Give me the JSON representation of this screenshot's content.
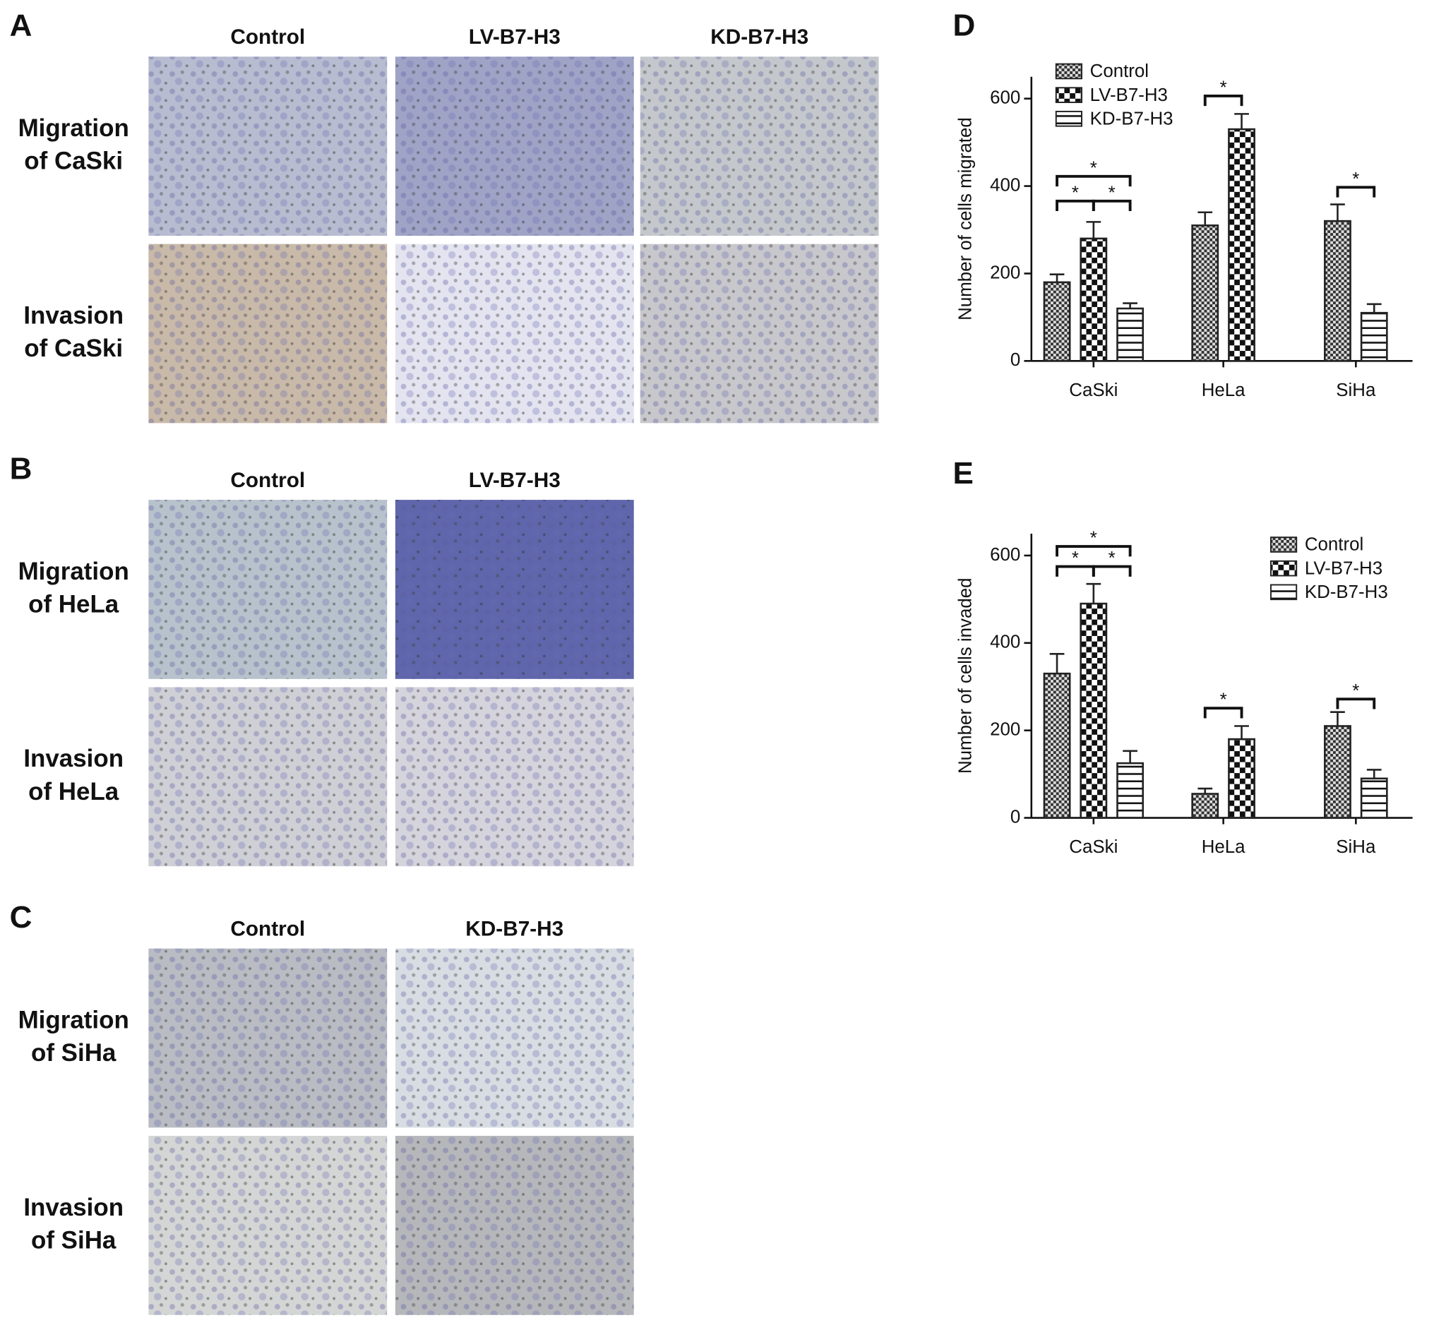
{
  "panels": [
    {
      "label": "A",
      "columns": [
        "Control",
        "LV-B7-H3",
        "KD-B7-H3"
      ],
      "rows": [
        [
          "Migration",
          "of CaSki"
        ],
        [
          "Invasion",
          "of CaSki"
        ]
      ]
    },
    {
      "label": "B",
      "columns": [
        "Control",
        "LV-B7-H3"
      ],
      "rows": [
        [
          "Migration",
          "of HeLa"
        ],
        [
          "Invasion",
          "of HeLa"
        ]
      ]
    },
    {
      "label": "C",
      "columns": [
        "Control",
        "KD-B7-H3"
      ],
      "rows": [
        [
          "Migration",
          "of SiHa"
        ],
        [
          "Invasion",
          "of SiHa"
        ]
      ]
    }
  ],
  "chart_data": [
    {
      "type": "bar",
      "panel_label": "D",
      "y_label": "Number of cells migrated",
      "categories": [
        "CaSki",
        "HeLa",
        "SiHa"
      ],
      "series": [
        {
          "name": "Control",
          "color": "#222222",
          "hatch": "checker-fine",
          "values": [
            180,
            310,
            320
          ],
          "errors": [
            18,
            30,
            38
          ]
        },
        {
          "name": "LV-B7-H3",
          "color": "#222222",
          "hatch": "checker-coarse",
          "values": [
            280,
            530,
            null
          ],
          "errors": [
            38,
            35,
            null
          ]
        },
        {
          "name": "KD-B7-H3",
          "color": "#222222",
          "hatch": "horizontal",
          "values": [
            120,
            null,
            110
          ],
          "errors": [
            12,
            null,
            20
          ]
        }
      ],
      "ylim": [
        0,
        650
      ],
      "yticks": [
        0,
        200,
        400,
        600
      ],
      "legend": "upper left",
      "annotations": [
        "*",
        "*",
        "*",
        "*",
        "*"
      ]
    },
    {
      "type": "bar",
      "panel_label": "E",
      "y_label": "Number of cells invaded",
      "categories": [
        "CaSki",
        "HeLa",
        "SiHa"
      ],
      "series": [
        {
          "name": "Control",
          "color": "#222222",
          "hatch": "checker-fine",
          "values": [
            330,
            55,
            210
          ],
          "errors": [
            45,
            12,
            32
          ]
        },
        {
          "name": "LV-B7-H3",
          "color": "#222222",
          "hatch": "checker-coarse",
          "values": [
            490,
            180,
            null
          ],
          "errors": [
            45,
            30,
            null
          ]
        },
        {
          "name": "KD-B7-H3",
          "color": "#222222",
          "hatch": "horizontal",
          "values": [
            125,
            null,
            90
          ],
          "errors": [
            28,
            null,
            20
          ]
        }
      ],
      "ylim": [
        0,
        650
      ],
      "yticks": [
        0,
        200,
        400,
        600
      ],
      "legend": "upper right",
      "annotations": [
        "*",
        "*",
        "*",
        "*",
        "*"
      ]
    }
  ]
}
